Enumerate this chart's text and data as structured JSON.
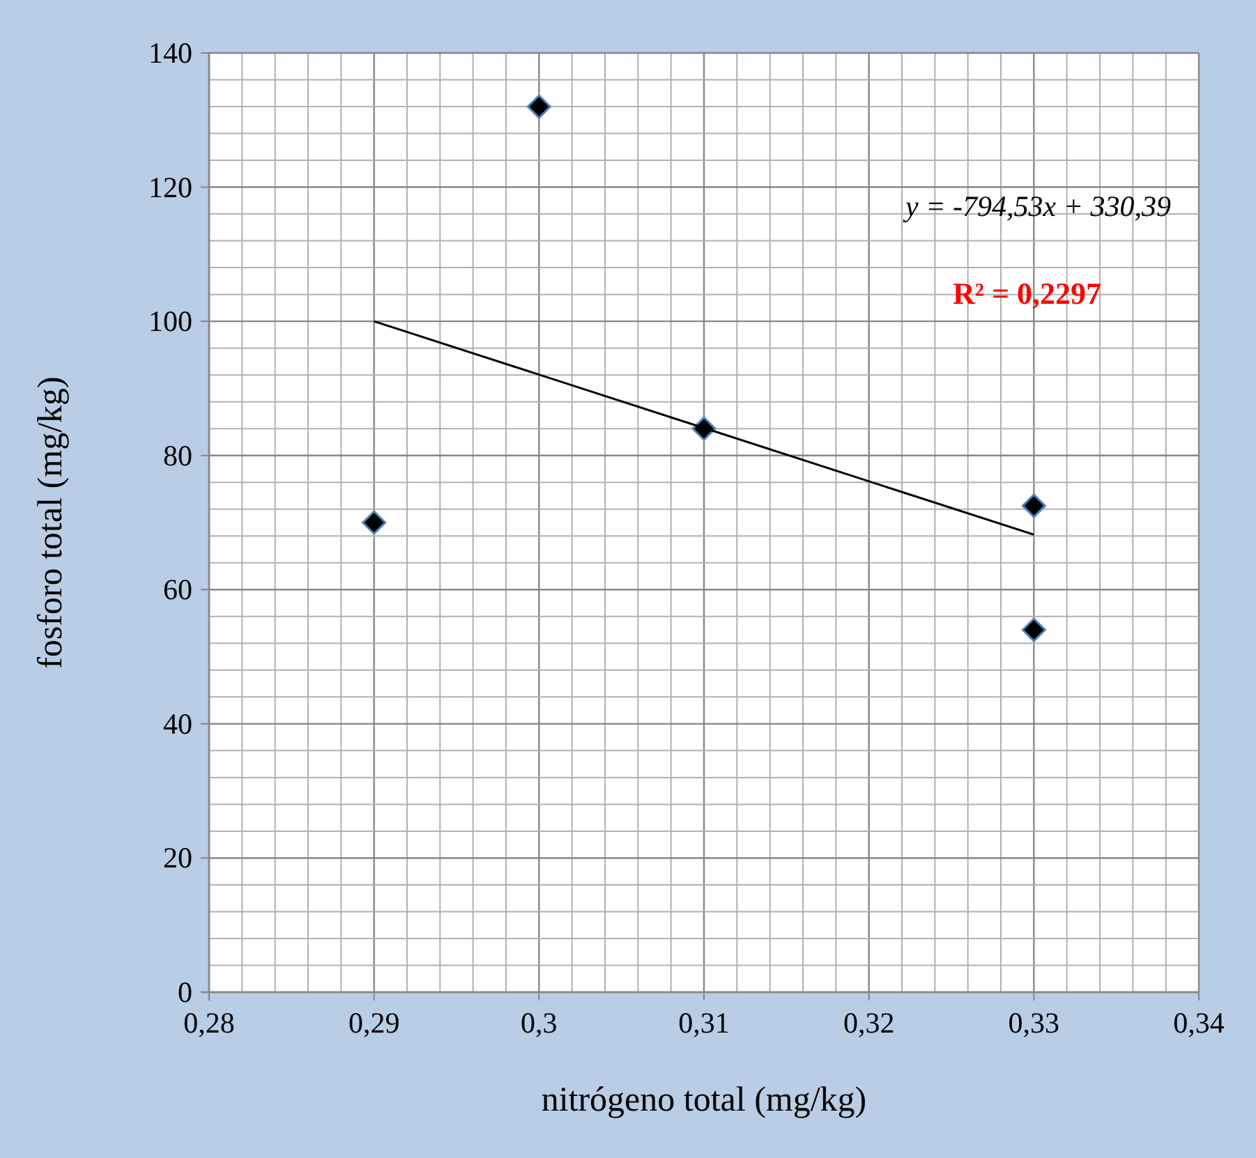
{
  "chart_data": {
    "type": "scatter",
    "xlabel": "nitrógeno total (mg/kg)",
    "ylabel": "fosforo total (mg/kg)",
    "xlim": [
      0.28,
      0.34
    ],
    "xticks": [
      {
        "value": 0.28,
        "label": "0,28"
      },
      {
        "value": 0.29,
        "label": "0,29"
      },
      {
        "value": 0.3,
        "label": "0,3"
      },
      {
        "value": 0.31,
        "label": "0,31"
      },
      {
        "value": 0.32,
        "label": "0,32"
      },
      {
        "value": 0.33,
        "label": "0,33"
      },
      {
        "value": 0.34,
        "label": "0,34"
      }
    ],
    "ylim": [
      0,
      140
    ],
    "yticks": [
      0,
      20,
      40,
      60,
      80,
      100,
      120,
      140
    ],
    "grid": true,
    "series": [
      {
        "color": "#000000",
        "marker": "diamond",
        "x": [
          0.29,
          0.3,
          0.31,
          0.33,
          0.33
        ],
        "values": [
          70,
          132,
          84,
          72.5,
          54
        ]
      },
      {
        "type": "line",
        "color": "#000000",
        "marker": "none",
        "x": [
          0.29,
          0.33
        ],
        "values": [
          100,
          68.2
        ]
      }
    ],
    "annotations": [
      "y = -794,53x + 330,39",
      "R² = 0,2297"
    ]
  }
}
